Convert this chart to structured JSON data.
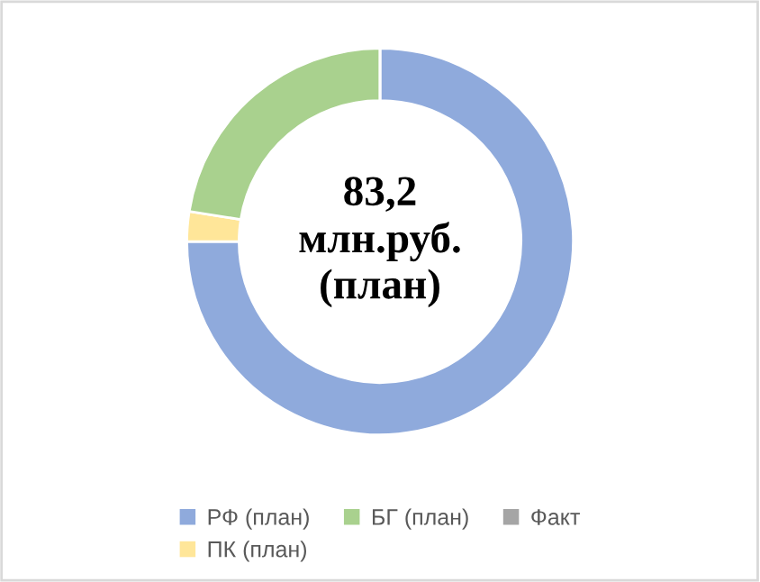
{
  "chart_data": {
    "type": "donut",
    "categories": [
      "РФ (план)",
      "ПК (план)",
      "БГ (план)",
      "Факт"
    ],
    "values": [
      75,
      2.5,
      22.5,
      0
    ],
    "colors": [
      "#8faadc",
      "#ffe699",
      "#a9d18e",
      "#a5a5a5"
    ],
    "annotations": [
      "83,2\nмлн.руб.\n(план)"
    ],
    "legend": "bottom"
  }
}
